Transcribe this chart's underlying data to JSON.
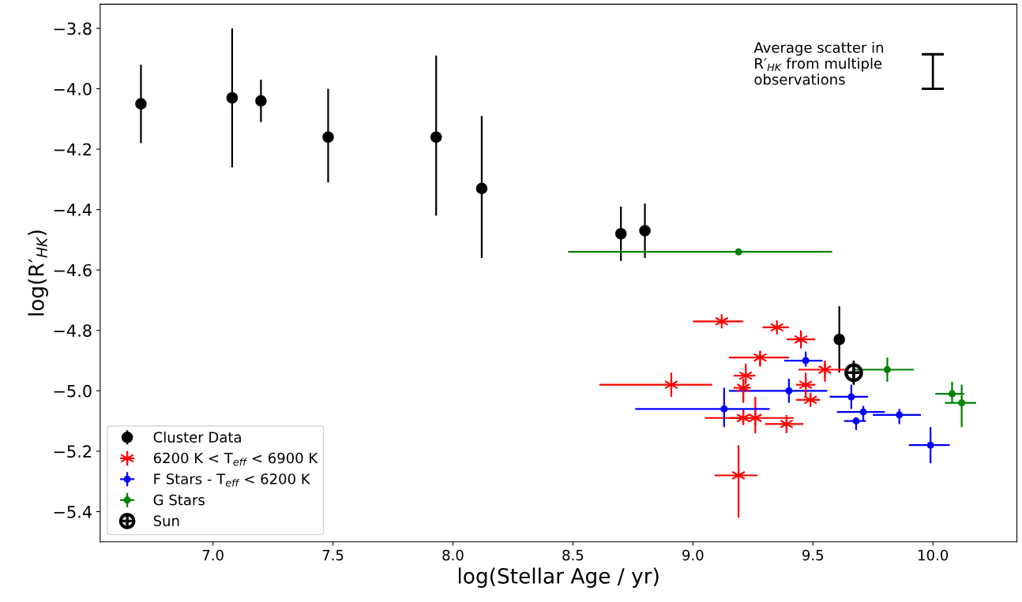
{
  "chart_data": {
    "type": "scatter",
    "xlabel": "log(Stellar Age / yr)",
    "ylabel": "log(R′$_{HK}$)",
    "xlim": [
      6.53,
      10.35
    ],
    "ylim": [
      -5.5,
      -3.72
    ],
    "xticks": [
      {
        "value": 7.0,
        "label": "7.0"
      },
      {
        "value": 7.5,
        "label": "7.5"
      },
      {
        "value": 8.0,
        "label": "8.0"
      },
      {
        "value": 8.5,
        "label": "8.5"
      },
      {
        "value": 9.0,
        "label": "9.0"
      },
      {
        "value": 9.5,
        "label": "9.5"
      },
      {
        "value": 10.0,
        "label": "10.0"
      }
    ],
    "yticks": [
      {
        "value": -3.8,
        "label": "−3.8"
      },
      {
        "value": -4.0,
        "label": "−4.0"
      },
      {
        "value": -4.2,
        "label": "−4.2"
      },
      {
        "value": -4.4,
        "label": "−4.4"
      },
      {
        "value": -4.6,
        "label": "−4.6"
      },
      {
        "value": -4.8,
        "label": "−4.8"
      },
      {
        "value": -5.0,
        "label": "−5.0"
      },
      {
        "value": -5.2,
        "label": "−5.2"
      },
      {
        "value": -5.4,
        "label": "−5.4"
      }
    ],
    "grid": false,
    "legend": "bottom left",
    "annotations": [
      "Average scatter in\nR′$_{HK}$ from multiple\nobservations"
    ],
    "series": [
      {
        "name": "Cluster Data",
        "color": "#000000",
        "marker": "circle",
        "x": [
          6.7,
          7.08,
          7.2,
          7.48,
          7.93,
          8.12,
          8.7,
          8.8,
          9.61
        ],
        "values": [
          -4.05,
          -4.03,
          -4.04,
          -4.16,
          -4.16,
          -4.33,
          -4.48,
          -4.47,
          -4.83
        ],
        "errors": [
          [
            -4.18,
            -3.92
          ],
          [
            -4.26,
            -3.8
          ],
          [
            -4.11,
            -3.97
          ],
          [
            -4.31,
            -4.0
          ],
          [
            -4.42,
            -3.89
          ],
          [
            -4.56,
            -4.09
          ],
          [
            -4.57,
            -4.39
          ],
          [
            -4.56,
            -4.38
          ],
          [
            -4.94,
            -4.72
          ]
        ]
      },
      {
        "name": "6200 K < T$_{eff}$ < 6900 K",
        "color": "#ff0000",
        "marker": "cross",
        "x": [
          9.12,
          9.35,
          9.45,
          9.28,
          9.55,
          9.22,
          8.91,
          9.21,
          9.47,
          9.49,
          9.21,
          9.26,
          9.39,
          9.19
        ],
        "values": [
          -4.77,
          -4.79,
          -4.83,
          -4.89,
          -4.93,
          -4.95,
          -4.98,
          -4.99,
          -4.98,
          -5.03,
          -5.09,
          -5.09,
          -5.11,
          -5.28
        ],
        "errors": [
          [
            -4.78,
            -4.76
          ],
          [
            -4.8,
            -4.78
          ],
          [
            -4.86,
            -4.8
          ],
          [
            -4.92,
            -4.87
          ],
          [
            -4.97,
            -4.9
          ],
          [
            -4.98,
            -4.91
          ],
          [
            -5.02,
            -4.94
          ],
          [
            -5.04,
            -4.96
          ],
          [
            -5.02,
            -4.94
          ],
          [
            -5.04,
            -5.01
          ],
          [
            -5.11,
            -5.06
          ],
          [
            -5.14,
            -5.02
          ],
          [
            -5.14,
            -5.08
          ],
          [
            -5.42,
            -5.18
          ]
        ],
        "xerrors": [
          [
            9.0,
            9.21
          ],
          [
            9.29,
            9.4
          ],
          [
            9.39,
            9.51
          ],
          [
            9.15,
            9.4
          ],
          [
            9.44,
            9.65
          ],
          [
            9.17,
            9.26
          ],
          [
            8.61,
            9.08
          ],
          [
            9.17,
            9.24
          ],
          [
            9.43,
            9.51
          ],
          [
            9.43,
            9.53
          ],
          [
            9.15,
            9.24
          ],
          [
            9.05,
            9.42
          ],
          [
            9.3,
            9.46
          ],
          [
            9.09,
            9.27
          ]
        ]
      },
      {
        "name": "F Stars - T$_{eff}$ < 6200 K",
        "color": "#0000ff",
        "marker": "circle",
        "x": [
          9.47,
          9.4,
          9.13,
          9.66,
          9.71,
          9.68,
          9.86,
          9.99
        ],
        "values": [
          -4.9,
          -5.0,
          -5.06,
          -5.02,
          -5.07,
          -5.1,
          -5.08,
          -5.18
        ],
        "errors": [
          [
            -4.92,
            -4.87
          ],
          [
            -5.04,
            -4.96
          ],
          [
            -5.12,
            -4.99
          ],
          [
            -5.06,
            -4.98
          ],
          [
            -5.1,
            -5.05
          ],
          [
            -5.13,
            -5.09
          ],
          [
            -5.11,
            -5.06
          ],
          [
            -5.24,
            -5.12
          ]
        ],
        "xerrors": [
          [
            9.38,
            9.54
          ],
          [
            9.15,
            9.56
          ],
          [
            8.76,
            9.32
          ],
          [
            9.57,
            9.73
          ],
          [
            9.6,
            9.8
          ],
          [
            9.63,
            9.72
          ],
          [
            9.75,
            9.95
          ],
          [
            9.9,
            10.07
          ]
        ]
      },
      {
        "name": "G Stars",
        "color": "#008000",
        "marker": "circle",
        "x": [
          9.19,
          9.81,
          10.08,
          10.12
        ],
        "values": [
          -4.54,
          -4.93,
          -5.01,
          -5.04
        ],
        "errors": [
          null,
          [
            -4.97,
            -4.89
          ],
          [
            -5.04,
            -4.97
          ],
          [
            -5.12,
            -4.98
          ]
        ],
        "xerrors": [
          [
            8.48,
            9.58
          ],
          [
            9.67,
            9.92
          ],
          [
            10.01,
            10.13
          ],
          [
            10.05,
            10.18
          ]
        ]
      },
      {
        "name": "Sun",
        "color": "#000000",
        "marker": "circle",
        "x": [
          9.67
        ],
        "values": [
          -4.94
        ],
        "errors": [
          [
            -4.98,
            -4.9
          ]
        ]
      },
      {
        "type": "line",
        "color": "#000000",
        "marker": "none",
        "x": [
          10.0,
          10.0
        ],
        "values": [
          -4.0,
          -3.886
        ],
        "errors": [
          0,
          0
        ]
      }
    ]
  }
}
